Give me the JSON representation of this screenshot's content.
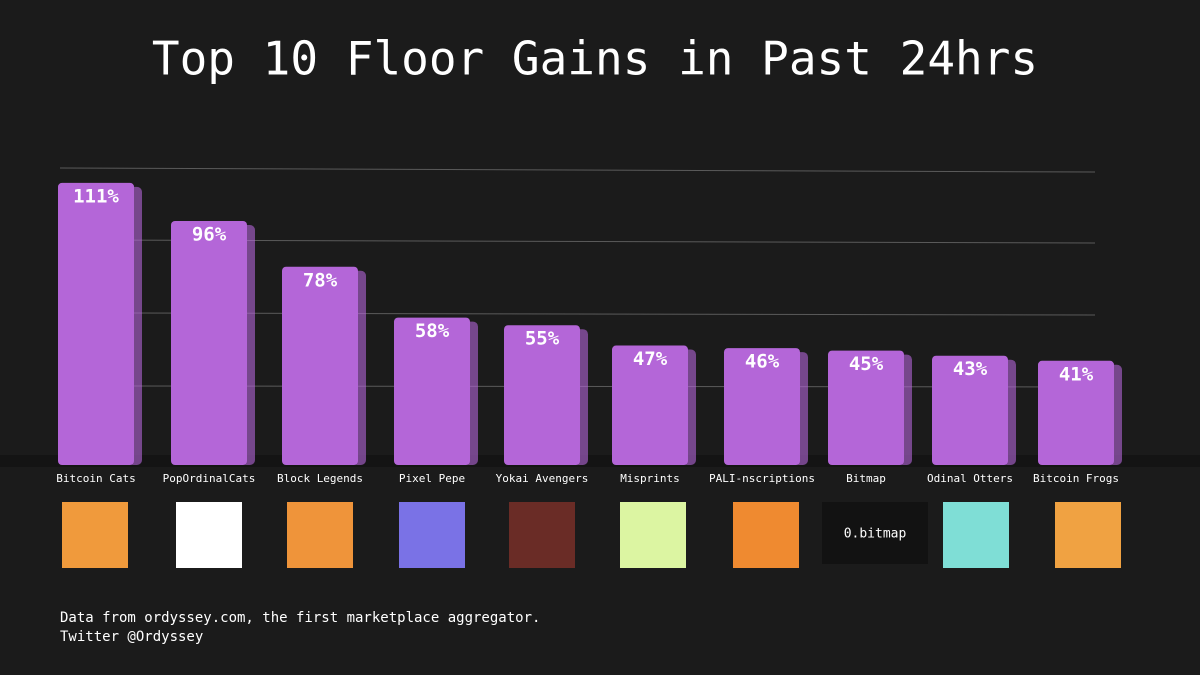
{
  "chart_data": {
    "type": "bar",
    "title": "Top 10 Floor Gains in Past 24hrs",
    "categories": [
      "Bitcoin Cats",
      "PopOrdinalCats",
      "Block Legends",
      "Pixel Pepe",
      "Yokai Avengers",
      "Misprints",
      "PALI-nscriptions",
      "Bitmap",
      "Odinal Otters",
      "Bitcoin Frogs"
    ],
    "values": [
      111,
      96,
      78,
      58,
      55,
      47,
      46,
      45,
      43,
      41
    ],
    "value_labels": [
      "111%",
      "96%",
      "78%",
      "58%",
      "55%",
      "47%",
      "46%",
      "45%",
      "43%",
      "41%"
    ],
    "color": "#b466d8",
    "ylim": [
      0,
      120
    ],
    "annotations": [
      "0.bitmap"
    ],
    "source": "Data from ordyssey.com, the first marketplace aggregator.",
    "credit": "Twitter @Ordyssey"
  }
}
